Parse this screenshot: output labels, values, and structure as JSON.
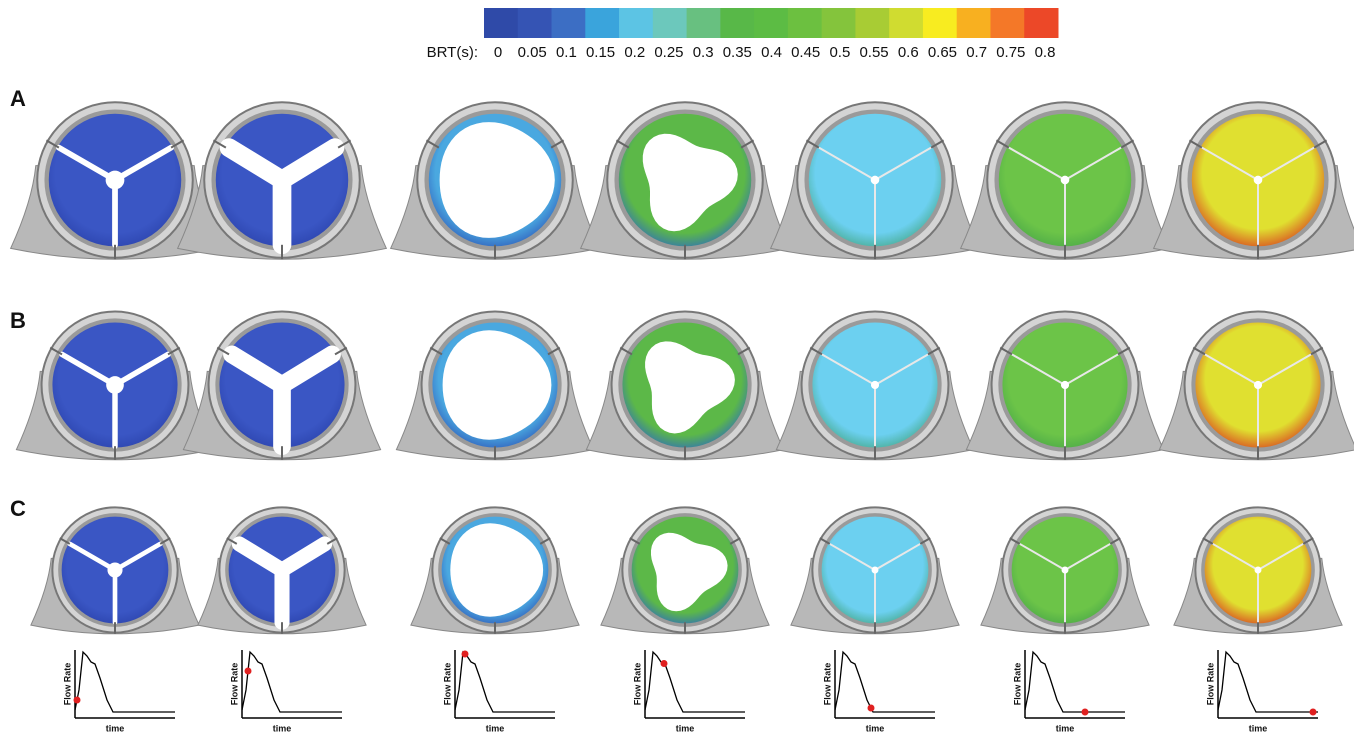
{
  "colorbar": {
    "label": "BRT(s):",
    "ticks": [
      0,
      0.05,
      0.1,
      0.15,
      0.2,
      0.25,
      0.3,
      0.35,
      0.4,
      0.45,
      0.5,
      0.55,
      0.6,
      0.65,
      0.7,
      0.75,
      0.8
    ]
  },
  "rows": [
    {
      "label": "A"
    },
    {
      "label": "B"
    },
    {
      "label": "C"
    }
  ],
  "flow_plots": [
    {
      "y_label": "Flow Rate",
      "x_label": "time"
    },
    {
      "y_label": "Flow Rate",
      "x_label": "time"
    },
    {
      "y_label": "Flow Rate",
      "x_label": "time"
    },
    {
      "y_label": "Flow Rate",
      "x_label": "time"
    },
    {
      "y_label": "Flow Rate",
      "x_label": "time"
    },
    {
      "y_label": "Flow Rate",
      "x_label": "time"
    },
    {
      "y_label": "Flow Rate",
      "x_label": "time"
    }
  ]
}
